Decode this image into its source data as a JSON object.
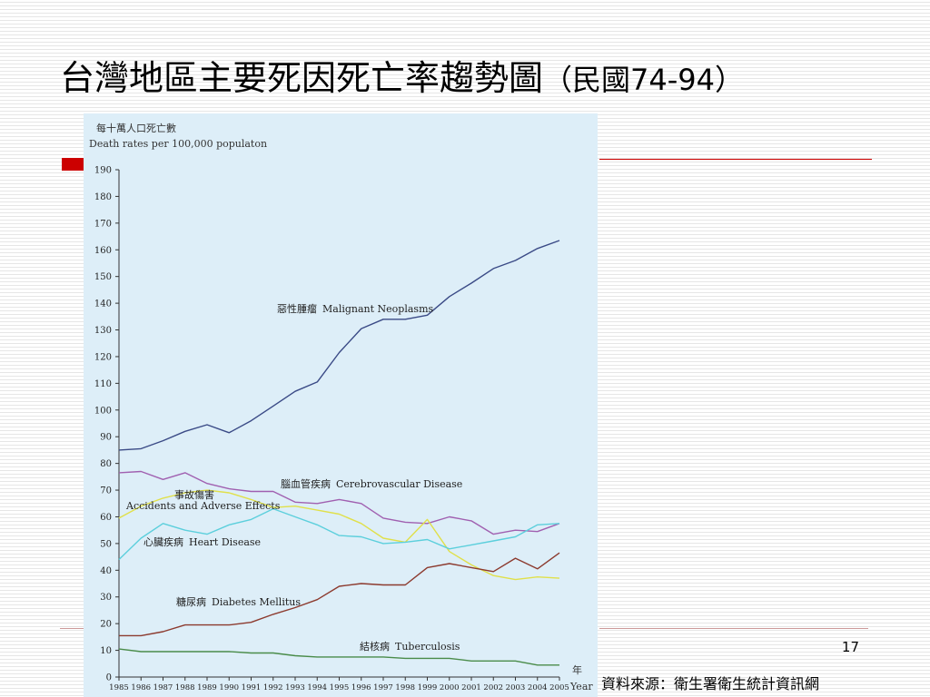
{
  "slide": {
    "title_main": "台灣地區主要死因死亡率趨勢圖",
    "title_suffix": "（民國74-94）",
    "page_number": "17",
    "source": "資料來源：衛生署衛生統計資訊網"
  },
  "colors": {
    "accent_red": "#cc0000",
    "chart_background": "#ddeef8"
  },
  "chart_data": {
    "type": "line",
    "ylabel_zh": "每十萬人口死亡數",
    "ylabel_en": "Death rates per 100,000 populaton",
    "xlabel_zh": "年",
    "xlabel_en": "Year",
    "ylim": [
      0,
      190
    ],
    "yticks": [
      0,
      10,
      20,
      30,
      40,
      50,
      60,
      70,
      80,
      90,
      100,
      110,
      120,
      130,
      140,
      150,
      160,
      170,
      180,
      190
    ],
    "x": [
      "1985",
      "1986",
      "1987",
      "1988",
      "1989",
      "1990",
      "1991",
      "1992",
      "1993",
      "1994",
      "1995",
      "1996",
      "1997",
      "1998",
      "1999",
      "2000",
      "2001",
      "2002",
      "2003",
      "2004",
      "2005"
    ],
    "grid": false,
    "series": [
      {
        "name": "惡性腫瘤 Malignant Neoplasms",
        "label_zh": "惡性腫瘤",
        "label_en": "Malignant Neoplasms",
        "color": "#3a4a86",
        "values": [
          85,
          85.5,
          88.5,
          92,
          94.5,
          91.5,
          96,
          101.5,
          107,
          110.5,
          121.5,
          130.5,
          134,
          134,
          135.5,
          142.5,
          147.5,
          153,
          156,
          160.5,
          163.5
        ]
      },
      {
        "name": "腦血管疾病 Cerebrovascular Disease",
        "label_zh": "腦血管疾病",
        "label_en": "Cerebrovascular Disease",
        "color": "#a060b0",
        "values": [
          76.5,
          77,
          74,
          76.5,
          72.5,
          70.5,
          69.5,
          69.5,
          65.5,
          65,
          66.5,
          65,
          59.5,
          58,
          57.5,
          60,
          58.5,
          53.5,
          55,
          54.5,
          57.5
        ]
      },
      {
        "name": "事故傷害 Accidents and Adverse Effects",
        "label_zh": "事故傷害",
        "label_en": "Accidents and Adverse Effects",
        "color": "#e0e04a",
        "values": [
          59.5,
          64,
          67,
          69,
          70,
          69,
          66.5,
          63.5,
          64,
          62.5,
          61,
          57.5,
          52,
          50.5,
          59,
          47,
          42,
          38,
          36.5,
          37.5,
          37
        ]
      },
      {
        "name": "心臟疾病 Heart Disease",
        "label_zh": "心臟疾病",
        "label_en": "Heart Disease",
        "color": "#5ccfdc",
        "values": [
          44,
          52,
          57.5,
          55,
          53.5,
          57,
          59,
          63,
          60,
          57,
          53,
          52.5,
          50,
          50.5,
          51.5,
          48,
          49.5,
          51,
          52.5,
          57,
          57.5
        ]
      },
      {
        "name": "糖尿病 Diabetes Mellitus",
        "label_zh": "糖尿病",
        "label_en": "Diabetes Mellitus",
        "color": "#8c3a2e",
        "values": [
          15.5,
          15.5,
          17,
          19.5,
          19.5,
          19.5,
          20.5,
          23.5,
          26,
          29,
          34,
          35,
          34.5,
          34.5,
          41,
          42.5,
          41,
          39.5,
          44.5,
          40.5,
          46.5
        ]
      },
      {
        "name": "結核病 Tuberculosis",
        "label_zh": "結核病",
        "label_en": "Tuberculosis",
        "color": "#4a8c4a",
        "values": [
          10.5,
          9.5,
          9.5,
          9.5,
          9.5,
          9.5,
          9,
          9,
          8,
          7.5,
          7.5,
          7.5,
          7.5,
          7,
          7,
          7,
          6,
          6,
          6,
          4.5,
          4.5
        ]
      }
    ]
  }
}
